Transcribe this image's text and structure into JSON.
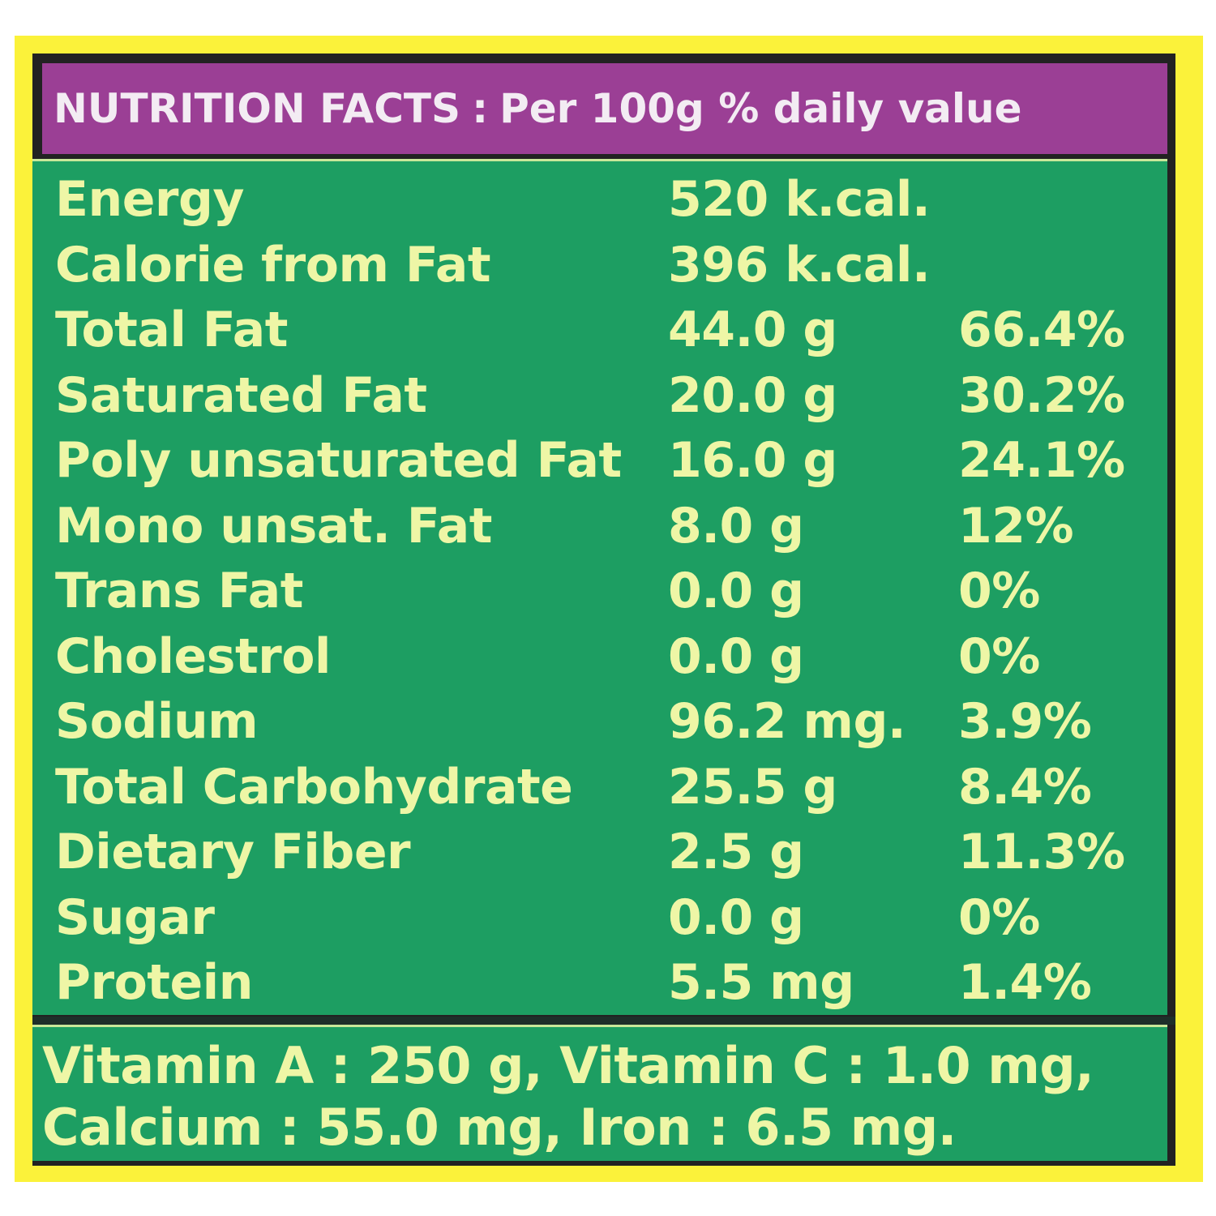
{
  "header": {
    "title": "NUTRITION FACTS",
    "separator": ":",
    "subtitle": "Per 100g % daily value"
  },
  "nutrients": [
    {
      "name": "Energy",
      "amount": "520 k.cal.",
      "daily_value": ""
    },
    {
      "name": "Calorie from Fat",
      "amount": "396 k.cal.",
      "daily_value": ""
    },
    {
      "name": "Total Fat",
      "amount": "44.0 g",
      "daily_value": "66.4%"
    },
    {
      "name": "Saturated Fat",
      "amount": "20.0 g",
      "daily_value": "30.2%"
    },
    {
      "name": "Poly unsaturated Fat",
      "amount": "16.0 g",
      "daily_value": "24.1%"
    },
    {
      "name": "Mono unsat. Fat",
      "amount": "8.0 g",
      "daily_value": "12%"
    },
    {
      "name": "Trans Fat",
      "amount": "0.0 g",
      "daily_value": "0%"
    },
    {
      "name": "Cholestrol",
      "amount": "0.0 g",
      "daily_value": "0%"
    },
    {
      "name": "Sodium",
      "amount": "96.2 mg.",
      "daily_value": "3.9%"
    },
    {
      "name": "Total Carbohydrate",
      "amount": "25.5 g",
      "daily_value": "8.4%"
    },
    {
      "name": "Dietary Fiber",
      "amount": "2.5 g",
      "daily_value": "11.3%"
    },
    {
      "name": "Sugar",
      "amount": "0.0 g",
      "daily_value": "0%"
    },
    {
      "name": "Protein",
      "amount": "5.5 mg",
      "daily_value": "1.4%"
    }
  ],
  "footer": {
    "line1": "Vitamin A : 250 g, Vitamin C : 1.0 mg,",
    "line2": "Calcium : 55.0 mg, Iron : 6.5 mg."
  },
  "colors": {
    "outer_background": "#fbf23a",
    "header_background": "#9b3f95",
    "body_background": "#1d9e62",
    "text": "#eef6a6",
    "header_text": "#f3ecf3"
  }
}
